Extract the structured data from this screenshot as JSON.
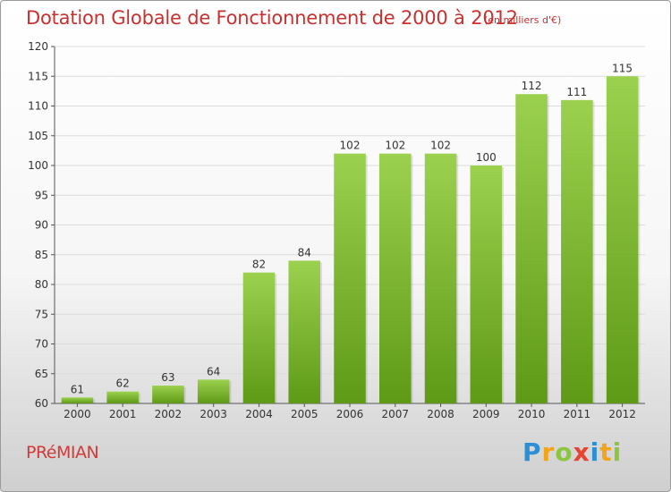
{
  "header": {
    "title": "Dotation Globale de Fonctionnement de 2000 à 2012",
    "unit_note": "(en milliers d'€)"
  },
  "footer": {
    "commune": "PRéMIAN",
    "brand": "Proxiti"
  },
  "colors": {
    "bar_top": "#9bd14e",
    "bar_bottom": "#5e9a16",
    "title": "#c8312f"
  },
  "chart_data": {
    "type": "bar",
    "title": "Dotation Globale de Fonctionnement de 2000 à 2012",
    "subtitle": "(en milliers d'€)",
    "xlabel": "",
    "ylabel": "",
    "categories": [
      "2000",
      "2001",
      "2002",
      "2003",
      "2004",
      "2005",
      "2006",
      "2007",
      "2008",
      "2009",
      "2010",
      "2011",
      "2012"
    ],
    "values": [
      61,
      62,
      63,
      64,
      82,
      84,
      102,
      102,
      102,
      100,
      112,
      111,
      115
    ],
    "ylim": [
      60,
      120
    ],
    "yticks": [
      60,
      65,
      70,
      75,
      80,
      85,
      90,
      95,
      100,
      105,
      110,
      115,
      120
    ],
    "grid": true,
    "legend": "none"
  }
}
